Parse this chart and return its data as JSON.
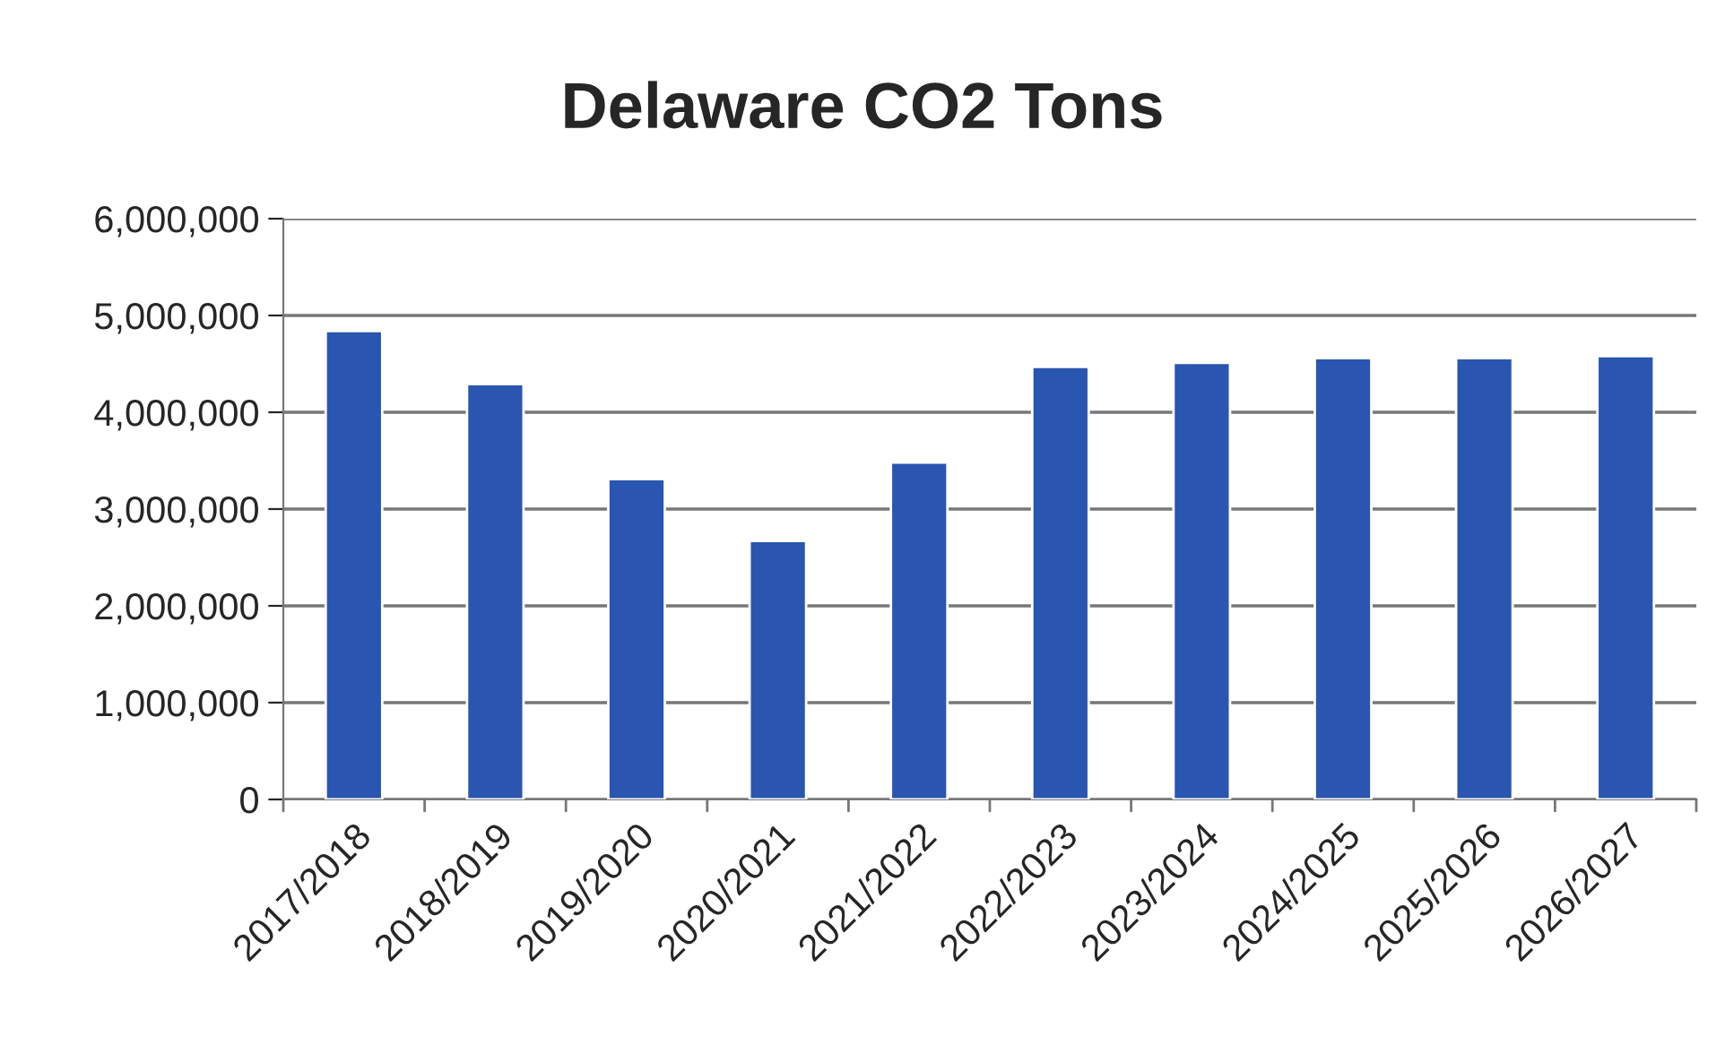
{
  "chart_data": {
    "type": "bar",
    "title": "Delaware CO2 Tons",
    "categories": [
      "2017/2018",
      "2018/2019",
      "2019/2020",
      "2020/2021",
      "2021/2022",
      "2022/2023",
      "2023/2024",
      "2024/2025",
      "2025/2026",
      "2026/2027"
    ],
    "values": [
      4840000,
      4290000,
      3310000,
      2670000,
      3480000,
      4470000,
      4510000,
      4560000,
      4560000,
      4580000
    ],
    "color": "#2a55b0",
    "ylim": [
      0,
      6000000
    ],
    "yticks": [
      {
        "value": 0,
        "label": "0"
      },
      {
        "value": 1000000,
        "label": "1,000,000"
      },
      {
        "value": 2000000,
        "label": "2,000,000"
      },
      {
        "value": 3000000,
        "label": "3,000,000"
      },
      {
        "value": 4000000,
        "label": "4,000,000"
      },
      {
        "value": 5000000,
        "label": "5,000,000"
      },
      {
        "value": 6000000,
        "label": "6,000,000"
      }
    ],
    "grid": "y"
  }
}
